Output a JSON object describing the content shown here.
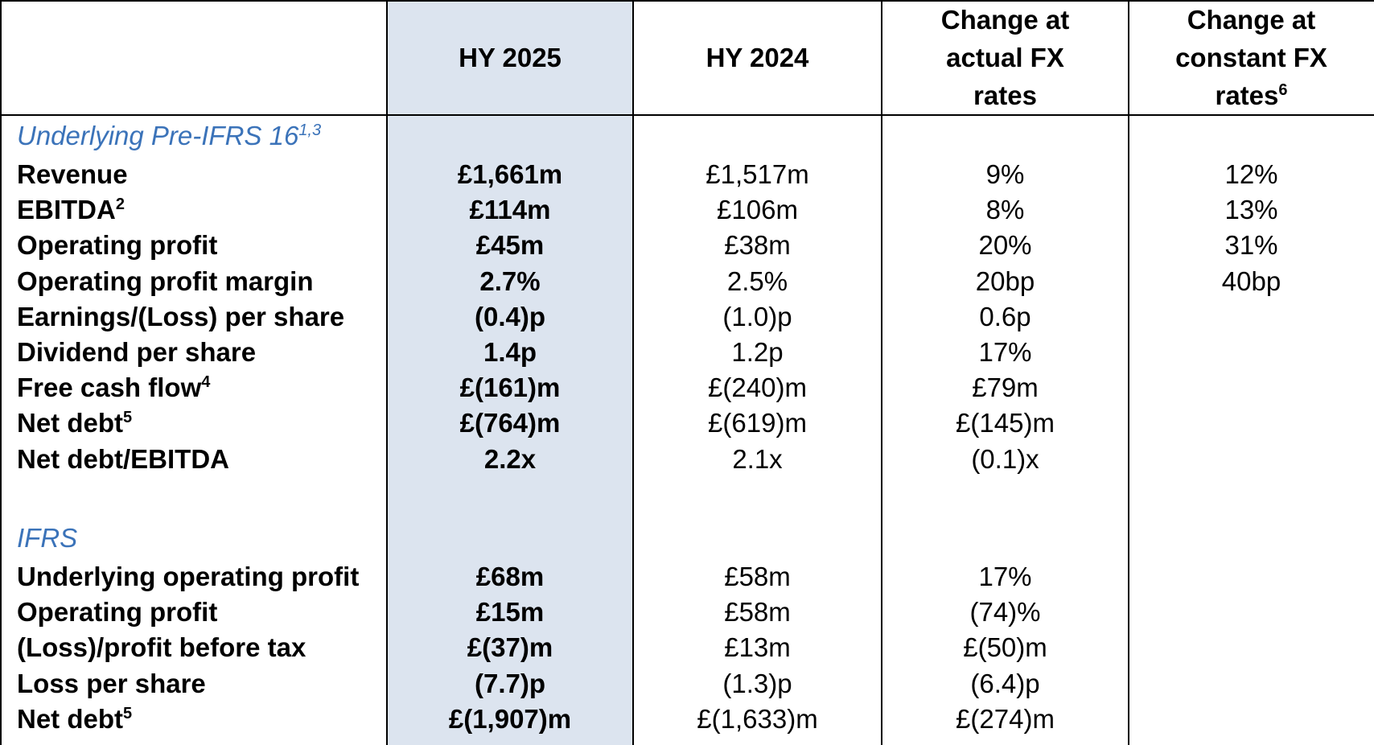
{
  "header": {
    "col1": "HY 2025",
    "col2": "HY 2024",
    "col3_line1": "Change at",
    "col3_line2": "actual FX",
    "col3_line3": "rates",
    "col4_line1": "Change at",
    "col4_line2": "constant FX",
    "col4_line3": "rates",
    "col4_sup": "6"
  },
  "sections": {
    "underlying": {
      "title": "Underlying Pre-IFRS 16",
      "sup": "1,3"
    },
    "ifrs": {
      "title": "IFRS"
    }
  },
  "underlying_rows": [
    {
      "label": "Revenue",
      "sup": "",
      "hy2025": "£1,661m",
      "hy2024": "£1,517m",
      "actual_fx": "9%",
      "constant_fx": "12%"
    },
    {
      "label": "EBITDA",
      "sup": "2",
      "hy2025": "£114m",
      "hy2024": "£106m",
      "actual_fx": "8%",
      "constant_fx": "13%"
    },
    {
      "label": "Operating profit",
      "sup": "",
      "hy2025": "£45m",
      "hy2024": "£38m",
      "actual_fx": "20%",
      "constant_fx": "31%"
    },
    {
      "label": "Operating profit margin",
      "sup": "",
      "hy2025": "2.7%",
      "hy2024": "2.5%",
      "actual_fx": "20bp",
      "constant_fx": "40bp"
    },
    {
      "label": "Earnings/(Loss) per share",
      "sup": "",
      "hy2025": "(0.4)p",
      "hy2024": "(1.0)p",
      "actual_fx": "0.6p",
      "constant_fx": ""
    },
    {
      "label": "Dividend per share",
      "sup": "",
      "hy2025": "1.4p",
      "hy2024": "1.2p",
      "actual_fx": "17%",
      "constant_fx": ""
    },
    {
      "label": "Free cash flow",
      "sup": "4",
      "hy2025": "£(161)m",
      "hy2024": "£(240)m",
      "actual_fx": "£79m",
      "constant_fx": ""
    },
    {
      "label": "Net debt",
      "sup": "5",
      "hy2025": "£(764)m",
      "hy2024": "£(619)m",
      "actual_fx": "£(145)m",
      "constant_fx": ""
    },
    {
      "label": "Net debt/EBITDA",
      "sup": "",
      "hy2025": "2.2x",
      "hy2024": "2.1x",
      "actual_fx": "(0.1)x",
      "constant_fx": ""
    }
  ],
  "ifrs_rows": [
    {
      "label": "Underlying operating profit",
      "sup": "",
      "hy2025": "£68m",
      "hy2024": "£58m",
      "actual_fx": "17%",
      "constant_fx": ""
    },
    {
      "label": "Operating profit",
      "sup": "",
      "hy2025": "£15m",
      "hy2024": "£58m",
      "actual_fx": "(74)%",
      "constant_fx": ""
    },
    {
      "label": "(Loss)/profit before tax",
      "sup": "",
      "hy2025": "£(37)m",
      "hy2024": "£13m",
      "actual_fx": "£(50)m",
      "constant_fx": ""
    },
    {
      "label": "Loss per share",
      "sup": "",
      "hy2025": "(7.7)p",
      "hy2024": "(1.3)p",
      "actual_fx": "(6.4)p",
      "constant_fx": ""
    },
    {
      "label": "Net debt",
      "sup": "5",
      "hy2025": "£(1,907)m",
      "hy2024": "£(1,633)m",
      "actual_fx": "£(274)m",
      "constant_fx": ""
    }
  ]
}
